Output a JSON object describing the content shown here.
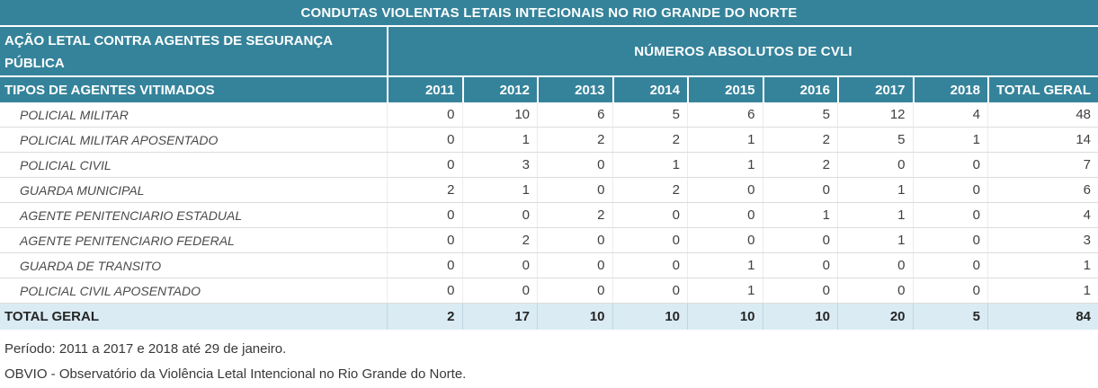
{
  "title": "CONDUTAS VIOLENTAS LETAIS INTECIONAIS NO RIO GRANDE DO NORTE",
  "header": {
    "left_label": "AÇÃO LETAL CONTRA AGENTES DE SEGURANÇA PÚBLICA",
    "right_label": "NÚMEROS ABSOLUTOS DE CVLI",
    "row_header": "TIPOS DE AGENTES VITIMADOS",
    "years": [
      "2011",
      "2012",
      "2013",
      "2014",
      "2015",
      "2016",
      "2017",
      "2018"
    ],
    "total_column": "TOTAL GERAL"
  },
  "table": {
    "rows": [
      {
        "label": "POLICIAL MILITAR",
        "values": [
          "0",
          "10",
          "6",
          "5",
          "6",
          "5",
          "12",
          "4"
        ],
        "total": "48"
      },
      {
        "label": "POLICIAL MILITAR APOSENTADO",
        "values": [
          "0",
          "1",
          "2",
          "2",
          "1",
          "2",
          "5",
          "1"
        ],
        "total": "14"
      },
      {
        "label": "POLICIAL CIVIL",
        "values": [
          "0",
          "3",
          "0",
          "1",
          "1",
          "2",
          "0",
          "0"
        ],
        "total": "7"
      },
      {
        "label": "GUARDA MUNICIPAL",
        "values": [
          "2",
          "1",
          "0",
          "2",
          "0",
          "0",
          "1",
          "0"
        ],
        "total": "6"
      },
      {
        "label": "AGENTE PENITENCIARIO ESTADUAL",
        "values": [
          "0",
          "0",
          "2",
          "0",
          "0",
          "1",
          "1",
          "0"
        ],
        "total": "4"
      },
      {
        "label": "AGENTE PENITENCIARIO FEDERAL",
        "values": [
          "0",
          "2",
          "0",
          "0",
          "0",
          "0",
          "1",
          "0"
        ],
        "total": "3"
      },
      {
        "label": "GUARDA DE TRANSITO",
        "values": [
          "0",
          "0",
          "0",
          "0",
          "1",
          "0",
          "0",
          "0"
        ],
        "total": "1"
      },
      {
        "label": "POLICIAL CIVIL APOSENTADO",
        "values": [
          "0",
          "0",
          "0",
          "0",
          "1",
          "0",
          "0",
          "0"
        ],
        "total": "1"
      }
    ],
    "total_row": {
      "label": "TOTAL GERAL",
      "values": [
        "2",
        "17",
        "10",
        "10",
        "10",
        "10",
        "20",
        "5"
      ],
      "total": "84"
    }
  },
  "footer": {
    "line1": "Período: 2011 a 2017 e 2018 até 29 de janeiro.",
    "line2": "OBVIO - Observatório da Violência Letal Intencional no Rio Grande do Norte."
  },
  "colors": {
    "header_teal": "#35839b",
    "total_row_bg": "#daebf3",
    "grid_line": "#dcdcdc",
    "header_text": "#ffffff",
    "body_text": "#3f3f3f"
  },
  "chart_data": {
    "type": "table",
    "title": "CONDUTAS VIOLENTAS LETAIS INTECIONAIS NO RIO GRANDE DO NORTE",
    "subtitle": "NÚMEROS ABSOLUTOS DE CVLI — AÇÃO LETAL CONTRA AGENTES DE SEGURANÇA PÚBLICA",
    "columns": [
      "TIPOS DE AGENTES VITIMADOS",
      "2011",
      "2012",
      "2013",
      "2014",
      "2015",
      "2016",
      "2017",
      "2018",
      "TOTAL GERAL"
    ],
    "rows": [
      [
        "POLICIAL MILITAR",
        0,
        10,
        6,
        5,
        6,
        5,
        12,
        4,
        48
      ],
      [
        "POLICIAL MILITAR APOSENTADO",
        0,
        1,
        2,
        2,
        1,
        2,
        5,
        1,
        14
      ],
      [
        "POLICIAL CIVIL",
        0,
        3,
        0,
        1,
        1,
        2,
        0,
        0,
        7
      ],
      [
        "GUARDA MUNICIPAL",
        2,
        1,
        0,
        2,
        0,
        0,
        1,
        0,
        6
      ],
      [
        "AGENTE PENITENCIARIO ESTADUAL",
        0,
        0,
        2,
        0,
        0,
        1,
        1,
        0,
        4
      ],
      [
        "AGENTE PENITENCIARIO FEDERAL",
        0,
        2,
        0,
        0,
        0,
        0,
        1,
        0,
        3
      ],
      [
        "GUARDA DE TRANSITO",
        0,
        0,
        0,
        0,
        1,
        0,
        0,
        0,
        1
      ],
      [
        "POLICIAL CIVIL APOSENTADO",
        0,
        0,
        0,
        0,
        1,
        0,
        0,
        0,
        1
      ],
      [
        "TOTAL GERAL",
        2,
        17,
        10,
        10,
        10,
        10,
        20,
        5,
        84
      ]
    ],
    "notes": [
      "Período: 2011 a 2017 e 2018 até 29 de janeiro.",
      "OBVIO - Observatório da Violência Letal Intencional no Rio Grande do Norte."
    ]
  }
}
